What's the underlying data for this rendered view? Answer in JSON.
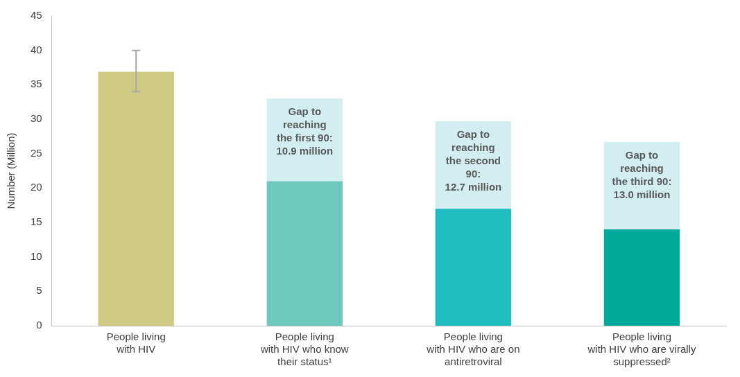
{
  "chart_data": {
    "type": "bar",
    "stacked": true,
    "ylabel": "Number (Million)",
    "categories": [
      "People living\nwith HIV",
      "People living\nwith HIV who know\ntheir status¹",
      "People living\nwith HIV who are on\nantiretroviral",
      "People living\nwith HIV who are virally\nsuppressed²"
    ],
    "series": [
      {
        "colors": [
          "#cfcb85",
          "#6fc8bc",
          "#20bcc0",
          "#00a99a"
        ],
        "values": [
          36.9,
          21,
          17,
          14
        ],
        "errors": [
          [
            34,
            40
          ],
          null,
          null,
          null
        ]
      },
      {
        "color": "#d3eef0",
        "values": [
          null,
          12,
          12.7,
          12.7
        ]
      }
    ],
    "ylim": [
      0,
      45
    ],
    "yticks": [
      0,
      5,
      10,
      15,
      20,
      25,
      30,
      35,
      40,
      45
    ],
    "grid": false,
    "legend": false,
    "annotations": [
      "Gap to\nreaching\nthe first 90:\n10.9 million",
      "Gap to\nreaching\nthe second\n90:\n12.7 million",
      "Gap to\nreaching\nthe third 90:\n13.0 million"
    ]
  }
}
